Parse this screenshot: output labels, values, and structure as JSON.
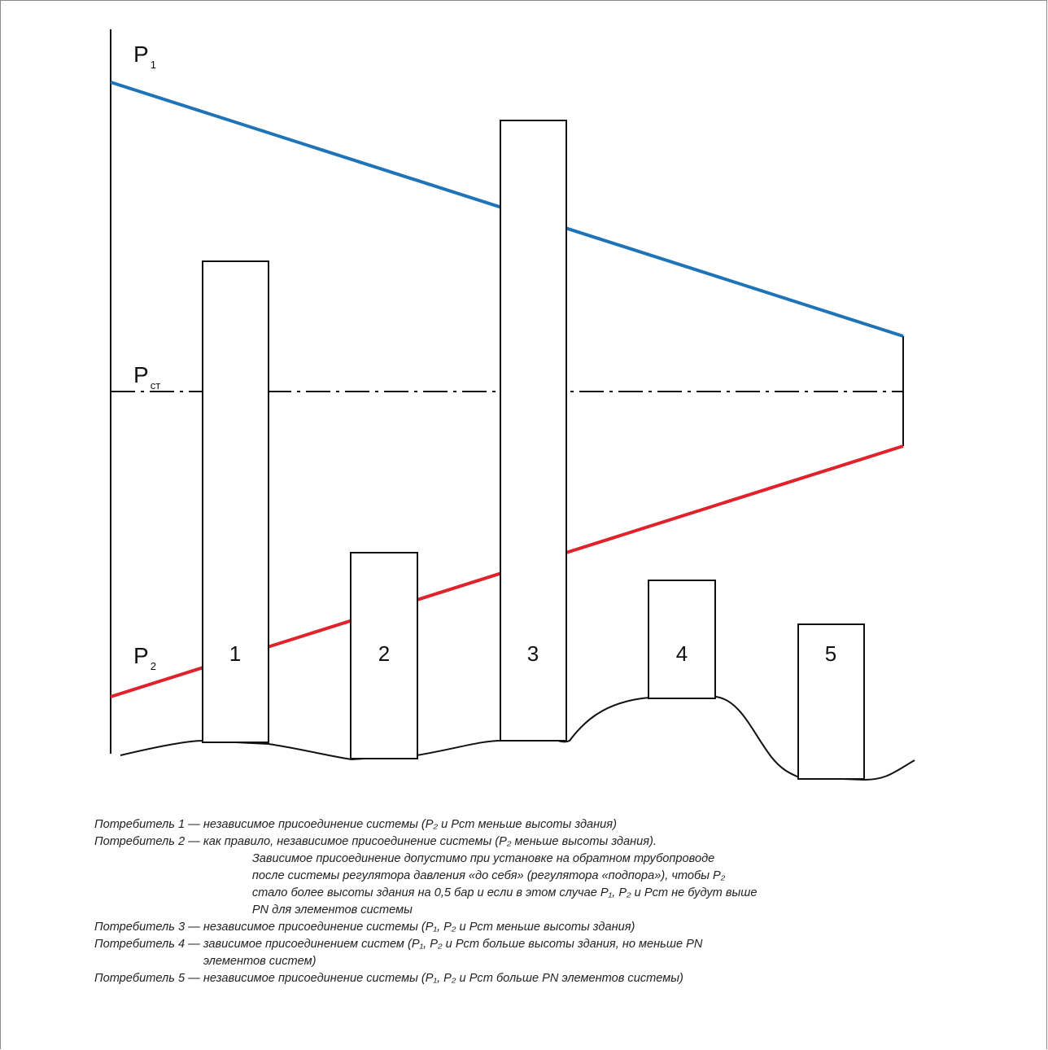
{
  "labels": {
    "p1": {
      "main": "P",
      "sub": "1"
    },
    "pst": {
      "main": "P",
      "sub": "ст"
    },
    "p2": {
      "main": "P",
      "sub": "2"
    }
  },
  "buildings": [
    {
      "number": "1"
    },
    {
      "number": "2"
    },
    {
      "number": "3"
    },
    {
      "number": "4"
    },
    {
      "number": "5"
    }
  ],
  "colors": {
    "p1_line": "#1f74b8",
    "p2_line": "#e0232b",
    "static_line": "#111111",
    "outline": "#111111"
  },
  "legend": {
    "items": [
      {
        "who": "Потребитель 1",
        "lines": [
          "независимое присоединение системы (P₂ и Pст меньше высоты здания)"
        ]
      },
      {
        "who": "Потребитель 2",
        "lines": [
          "как правило, независимое присоединение системы (P₂ меньше высоты здания).",
          "Зависимое присоединение допустимо при установке на обратном трубопроводе",
          "после системы регулятора давления «до себя» (регулятора «подпора»), чтобы P₂",
          "стало более высоты здания на 0,5 бар и если в этом случае P₁, P₂ и Pст не будут выше",
          "PN для элементов системы"
        ]
      },
      {
        "who": "Потребитель 3",
        "lines": [
          "независимое присоединение системы (P₁, P₂ и Pст меньше высоты здания)"
        ]
      },
      {
        "who": "Потребитель 4",
        "lines": [
          "зависимое присоединением систем (P₁, P₂ и Pст больше высоты здания, но меньше PN",
          "элементов систем)"
        ]
      },
      {
        "who": "Потребитель 5",
        "lines": [
          "независимое присоединение системы (P₁, P₂ и Pст больше PN элементов системы)"
        ]
      }
    ]
  }
}
